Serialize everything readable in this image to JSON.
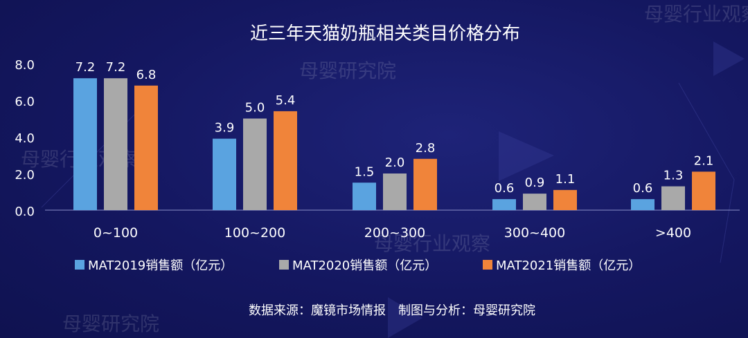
{
  "chart_data": {
    "type": "bar",
    "title": "近三年天猫奶瓶相关类目价格分布",
    "categories": [
      "0~100",
      "100~200",
      "200~300",
      "300~400",
      ">400"
    ],
    "series": [
      {
        "name": "MAT2019销售额（亿元）",
        "color": "#5aa3e0",
        "values": [
          7.2,
          3.9,
          1.5,
          0.6,
          0.6
        ]
      },
      {
        "name": "MAT2020销售额（亿元）",
        "color": "#a9a9a9",
        "values": [
          7.2,
          5.0,
          2.0,
          0.9,
          1.3
        ]
      },
      {
        "name": "MAT2021销售额（亿元）",
        "color": "#f0843a",
        "values": [
          6.8,
          5.4,
          2.8,
          1.1,
          2.1
        ]
      }
    ],
    "yticks": [
      "0.0",
      "2.0",
      "4.0",
      "6.0",
      "8.0"
    ],
    "ylim": [
      0,
      8
    ],
    "legend_position": "bottom",
    "grid": false
  },
  "source_text": "数据来源：魔镜市场情报　制图与分析：母婴研究院",
  "watermarks": [
    "母婴行业观察",
    "母婴研究院",
    "母婴行业观察",
    "母婴研究院",
    "母婴行业观察"
  ]
}
